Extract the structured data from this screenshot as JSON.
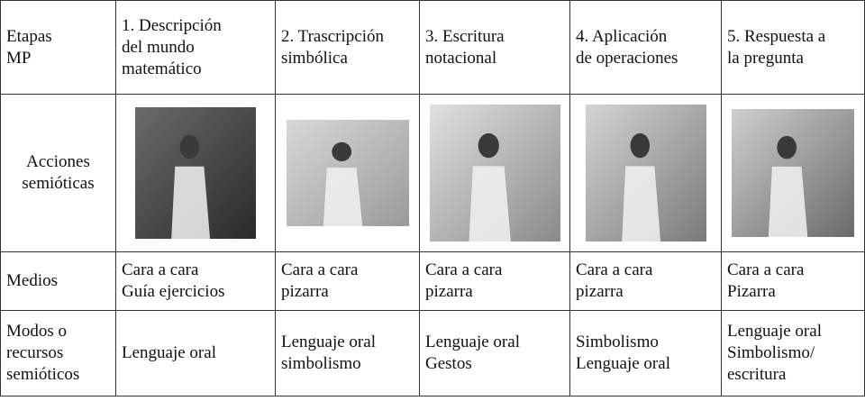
{
  "table": {
    "header": [
      [
        "Etapas",
        "MP"
      ],
      [
        "1. Descripción",
        "del mundo",
        "matemático"
      ],
      [
        "2. Trascripción",
        "simbólica"
      ],
      [
        "3. Escritura",
        "notacional"
      ],
      [
        "4. Aplicación",
        "de operaciones"
      ],
      [
        "5. Respuesta a",
        "la pregunta"
      ]
    ],
    "rows": [
      [
        [
          "Acciones",
          "semióticas"
        ]
      ],
      [
        [
          "Medios"
        ],
        [
          "Cara a cara",
          "Guía ejercicios"
        ],
        [
          "Cara a cara",
          "pizarra"
        ],
        [
          "Cara a cara",
          "pizarra"
        ],
        [
          "Cara a cara",
          "pizarra"
        ],
        [
          "Cara a cara",
          "Pizarra"
        ]
      ],
      [
        [
          "Modos o",
          "recursos",
          "semióticos"
        ],
        [
          "Lenguaje oral"
        ],
        [
          "Lenguaje oral",
          "simbolismo"
        ],
        [
          "Lenguaje oral",
          "Gestos"
        ],
        [
          "Simbolismo",
          "Lenguaje oral"
        ],
        [
          "Lenguaje oral",
          "Simbolismo/",
          "escritura"
        ]
      ]
    ]
  }
}
